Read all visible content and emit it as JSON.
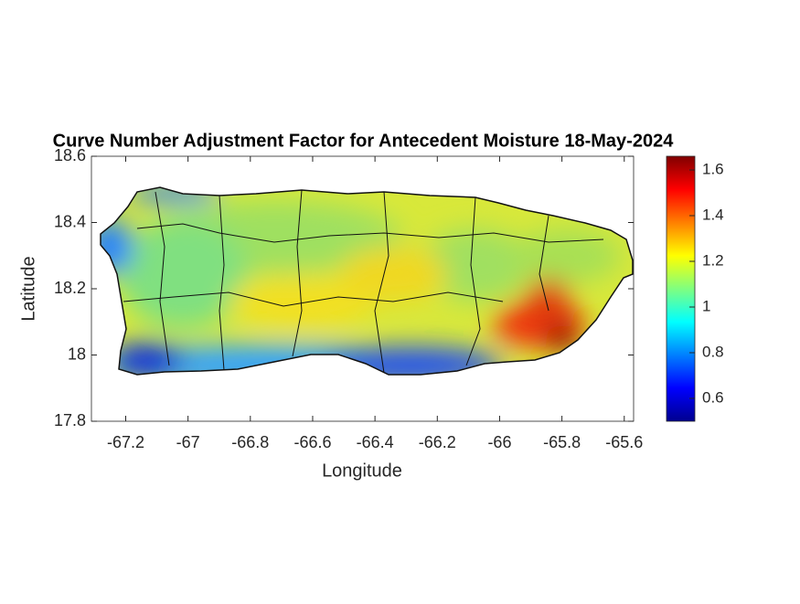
{
  "chart_data": {
    "type": "map",
    "title": "Curve Number Adjustment Factor for Antecedent Moisture 18-May-2024",
    "x_label": "Longitude",
    "y_label": "Latitude",
    "xlim": [
      -67.31,
      -65.57
    ],
    "xticks": [
      -67.2,
      -67,
      -66.8,
      -66.6,
      -66.4,
      -66.2,
      -66,
      -65.8,
      -65.6
    ],
    "ylim": [
      17.8,
      18.6
    ],
    "yticks": [
      17.8,
      18,
      18.2,
      18.4,
      18.6
    ],
    "colorbar": {
      "colormap": "jet",
      "clim": [
        0.5,
        1.66
      ],
      "ticks": [
        0.6,
        0.8,
        1,
        1.2,
        1.4,
        1.6
      ]
    }
  }
}
